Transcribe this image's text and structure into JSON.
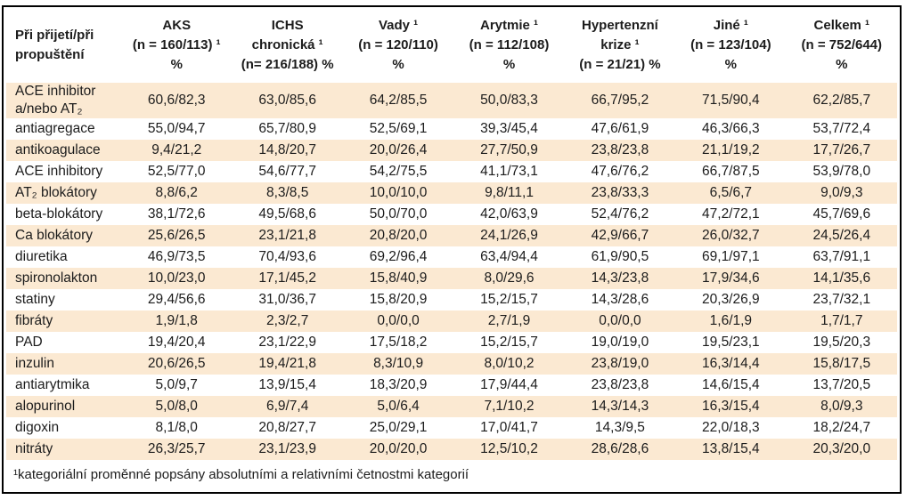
{
  "table": {
    "corner_header": [
      "Při přijetí/při",
      "propuštění"
    ],
    "column_headers": [
      [
        "AKS",
        "(n = 160/113) ¹",
        "%"
      ],
      [
        "ICHS",
        "chronická ¹",
        "(n= 216/188) %"
      ],
      [
        "Vady ¹",
        "(n = 120/110)",
        "%"
      ],
      [
        "Arytmie ¹",
        "(n = 112/108)",
        "%"
      ],
      [
        "Hypertenzní",
        "krize ¹",
        "(n = 21/21) %"
      ],
      [
        "Jiné ¹",
        "(n = 123/104)",
        "%"
      ],
      [
        "Celkem ¹",
        "(n = 752/644)",
        "%"
      ]
    ],
    "rows": [
      {
        "label": "ACE inhibitor a/nebo AT₂",
        "values": [
          "60,6/82,3",
          "63,0/85,6",
          "64,2/85,5",
          "50,0/83,3",
          "66,7/95,2",
          "71,5/90,4",
          "62,2/85,7"
        ]
      },
      {
        "label": "antiagregace",
        "values": [
          "55,0/94,7",
          "65,7/80,9",
          "52,5/69,1",
          "39,3/45,4",
          "47,6/61,9",
          "46,3/66,3",
          "53,7/72,4"
        ]
      },
      {
        "label": "antikoagulace",
        "values": [
          "9,4/21,2",
          "14,8/20,7",
          "20,0/26,4",
          "27,7/50,9",
          "23,8/23,8",
          "21,1/19,2",
          "17,7/26,7"
        ]
      },
      {
        "label": "ACE inhibitory",
        "values": [
          "52,5/77,0",
          "54,6/77,7",
          "54,2/75,5",
          "41,1/73,1",
          "47,6/76,2",
          "66,7/87,5",
          "53,9/78,0"
        ]
      },
      {
        "label": "AT₂ blokátory",
        "values": [
          "8,8/6,2",
          "8,3/8,5",
          "10,0/10,0",
          "9,8/11,1",
          "23,8/33,3",
          "6,5/6,7",
          "9,0/9,3"
        ]
      },
      {
        "label": "beta-blokátory",
        "values": [
          "38,1/72,6",
          "49,5/68,6",
          "50,0/70,0",
          "42,0/63,9",
          "52,4/76,2",
          "47,2/72,1",
          "45,7/69,6"
        ]
      },
      {
        "label": "Ca blokátory",
        "values": [
          "25,6/26,5",
          "23,1/21,8",
          "20,8/20,0",
          "24,1/26,9",
          "42,9/66,7",
          "26,0/32,7",
          "24,5/26,4"
        ]
      },
      {
        "label": "diuretika",
        "values": [
          "46,9/73,5",
          "70,4/93,6",
          "69,2/96,4",
          "63,4/94,4",
          "61,9/90,5",
          "69,1/97,1",
          "63,7/91,1"
        ]
      },
      {
        "label": "spironolakton",
        "values": [
          "10,0/23,0",
          "17,1/45,2",
          "15,8/40,9",
          "8,0/29,6",
          "14,3/23,8",
          "17,9/34,6",
          "14,1/35,6"
        ]
      },
      {
        "label": "statiny",
        "values": [
          "29,4/56,6",
          "31,0/36,7",
          "15,8/20,9",
          "15,2/15,7",
          "14,3/28,6",
          "20,3/26,9",
          "23,7/32,1"
        ]
      },
      {
        "label": "fibráty",
        "values": [
          "1,9/1,8",
          "2,3/2,7",
          "0,0/0,0",
          "2,7/1,9",
          "0,0/0,0",
          "1,6/1,9",
          "1,7/1,7"
        ]
      },
      {
        "label": "PAD",
        "values": [
          "19,4/20,4",
          "23,1/22,9",
          "17,5/18,2",
          "15,2/15,7",
          "19,0/19,0",
          "19,5/23,1",
          "19,5/20,3"
        ]
      },
      {
        "label": "inzulin",
        "values": [
          "20,6/26,5",
          "19,4/21,8",
          "8,3/10,9",
          "8,0/10,2",
          "23,8/19,0",
          "16,3/14,4",
          "15,8/17,5"
        ]
      },
      {
        "label": "antiarytmika",
        "values": [
          "5,0/9,7",
          "13,9/15,4",
          "18,3/20,9",
          "17,9/44,4",
          "23,8/23,8",
          "14,6/15,4",
          "13,7/20,5"
        ]
      },
      {
        "label": "alopurinol",
        "values": [
          "5,0/8,0",
          "6,9/7,4",
          "5,0/6,4",
          "7,1/10,2",
          "14,3/14,3",
          "16,3/15,4",
          "8,0/9,3"
        ]
      },
      {
        "label": "digoxin",
        "values": [
          "8,1/8,0",
          "20,8/27,7",
          "25,0/29,1",
          "17,0/41,7",
          "14,3/9,5",
          "22,0/18,3",
          "18,2/24,7"
        ]
      },
      {
        "label": "nitráty",
        "values": [
          "26,3/25,7",
          "23,1/23,9",
          "20,0/20,0",
          "12,5/10,2",
          "28,6/28,6",
          "13,8/15,4",
          "20,3/20,0"
        ]
      }
    ],
    "footnote": "¹kategoriální proměnné popsány absolutními a relativními četnostmi kategorií"
  },
  "colors": {
    "stripe": "#fbe9d2",
    "border": "#000000",
    "text": "#1c1c1c"
  }
}
